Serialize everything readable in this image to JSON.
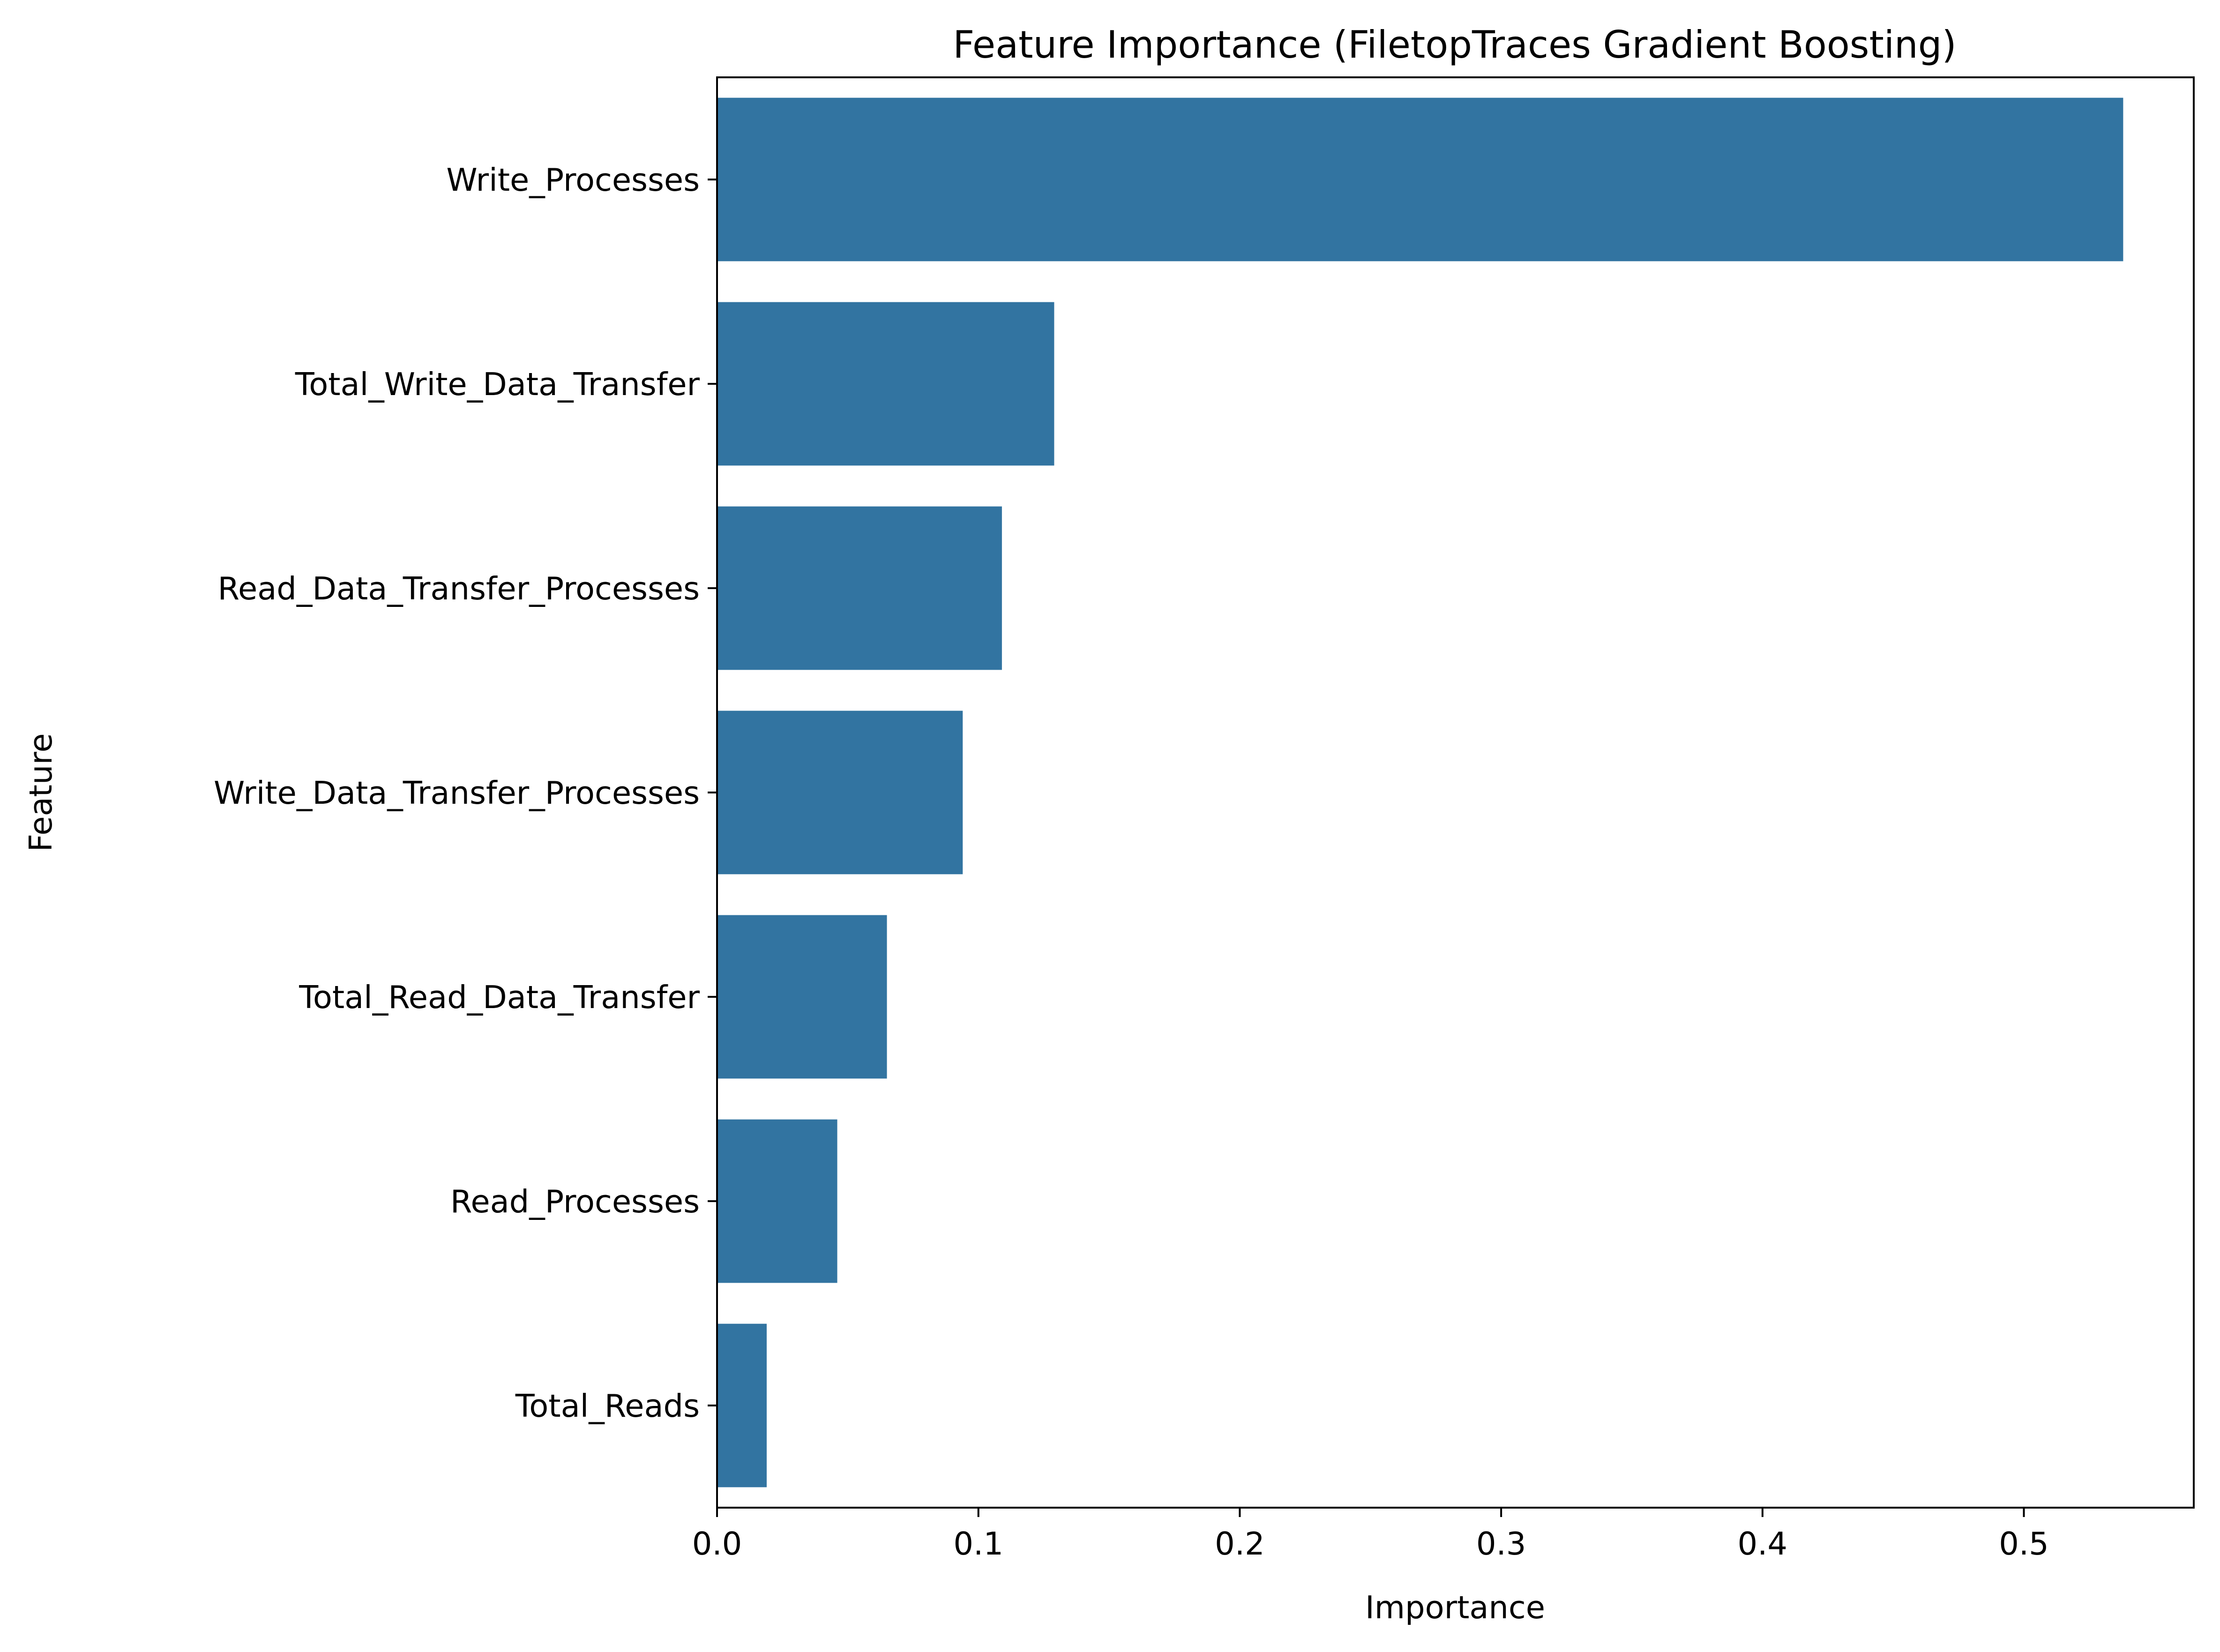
{
  "chart_data": {
    "type": "bar",
    "orientation": "horizontal",
    "title": "Feature Importance (FiletopTraces Gradient Boosting)",
    "xlabel": "Importance",
    "ylabel": "Feature",
    "categories": [
      "Write_Processes",
      "Total_Write_Data_Transfer",
      "Read_Data_Transfer_Processes",
      "Write_Data_Transfer_Processes",
      "Total_Read_Data_Transfer",
      "Read_Processes",
      "Total_Reads"
    ],
    "values": [
      0.538,
      0.129,
      0.109,
      0.094,
      0.065,
      0.046,
      0.019
    ],
    "xlim": [
      0,
      0.565
    ],
    "xticks": [
      0.0,
      0.1,
      0.2,
      0.3,
      0.4,
      0.5
    ],
    "xtick_labels": [
      "0.0",
      "0.1",
      "0.2",
      "0.3",
      "0.4",
      "0.5"
    ],
    "bar_color": "#3274a1",
    "grid": false,
    "legend": "none"
  }
}
